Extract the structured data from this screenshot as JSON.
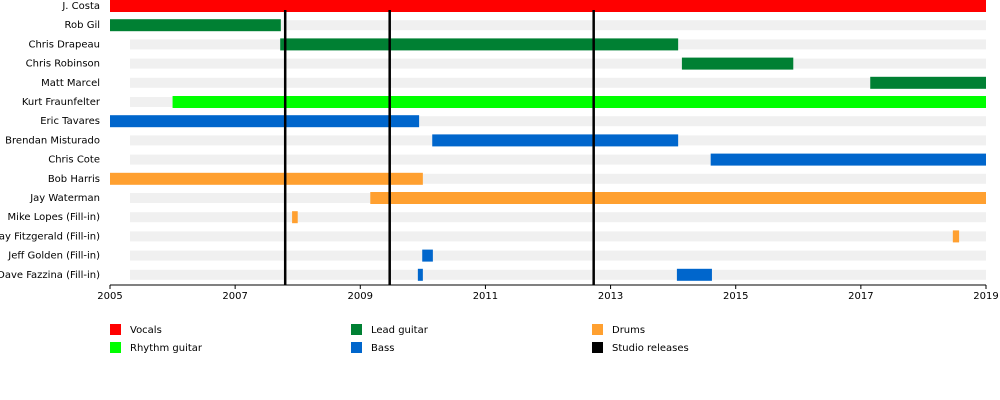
{
  "chart_data": {
    "type": "timeline",
    "xlim": [
      2005,
      2019
    ],
    "xticks": [
      2005,
      2007,
      2009,
      2011,
      2013,
      2015,
      2017,
      2019
    ],
    "legend": [
      {
        "name": "Vocals",
        "color": "#ff0000"
      },
      {
        "name": "Rhythm guitar",
        "color": "#00ff00"
      },
      {
        "name": "Lead guitar",
        "color": "#008033"
      },
      {
        "name": "Bass",
        "color": "#0066cc"
      },
      {
        "name": "Drums",
        "color": "#ffa030"
      },
      {
        "name": "Studio releases",
        "color": "#000000"
      }
    ],
    "releases": [
      2007.8,
      2009.47,
      2012.73
    ],
    "rows": [
      {
        "name": "J. Costa",
        "bars": [
          {
            "role": "Vocals",
            "start": 2005,
            "end": 2019
          }
        ]
      },
      {
        "name": "Rob Gil",
        "bars": [
          {
            "role": "Lead guitar",
            "start": 2005,
            "end": 2007.73
          }
        ]
      },
      {
        "name": "Chris Drapeau",
        "bars": [
          {
            "role": "Lead guitar",
            "start": 2007.72,
            "end": 2014.08
          }
        ]
      },
      {
        "name": "Chris Robinson",
        "bars": [
          {
            "role": "Lead guitar",
            "start": 2014.14,
            "end": 2015.92
          }
        ]
      },
      {
        "name": "Matt Marcel",
        "bars": [
          {
            "role": "Lead guitar",
            "start": 2017.15,
            "end": 2019
          }
        ]
      },
      {
        "name": "Kurt Fraunfelter",
        "bars": [
          {
            "role": "Rhythm guitar",
            "start": 2006,
            "end": 2019
          }
        ]
      },
      {
        "name": "Eric Tavares",
        "bars": [
          {
            "role": "Bass",
            "start": 2005,
            "end": 2009.94
          }
        ]
      },
      {
        "name": "Brendan Misturado",
        "bars": [
          {
            "role": "Bass",
            "start": 2010.15,
            "end": 2014.08
          }
        ]
      },
      {
        "name": "Chris Cote",
        "bars": [
          {
            "role": "Bass",
            "start": 2014.6,
            "end": 2019
          }
        ]
      },
      {
        "name": "Bob Harris",
        "bars": [
          {
            "role": "Drums",
            "start": 2005,
            "end": 2010
          }
        ]
      },
      {
        "name": "Jay Waterman",
        "bars": [
          {
            "role": "Drums",
            "start": 2009.16,
            "end": 2019
          }
        ]
      },
      {
        "name": "Mike Lopes (Fill-in)",
        "bars": [
          {
            "role": "Drums",
            "start": 2007.91,
            "end": 2008
          }
        ]
      },
      {
        "name": "Jay Fitzgerald (Fill-in)",
        "bars": [
          {
            "role": "Drums",
            "start": 2018.47,
            "end": 2018.57
          }
        ]
      },
      {
        "name": "Jeff Golden (Fill-in)",
        "bars": [
          {
            "role": "Bass",
            "start": 2009.99,
            "end": 2010.16
          }
        ]
      },
      {
        "name": "Dave Fazzina (Fill-in)",
        "bars": [
          {
            "role": "Bass",
            "start": 2009.92,
            "end": 2010
          },
          {
            "role": "Bass",
            "start": 2014.06,
            "end": 2014.62
          }
        ]
      }
    ]
  }
}
